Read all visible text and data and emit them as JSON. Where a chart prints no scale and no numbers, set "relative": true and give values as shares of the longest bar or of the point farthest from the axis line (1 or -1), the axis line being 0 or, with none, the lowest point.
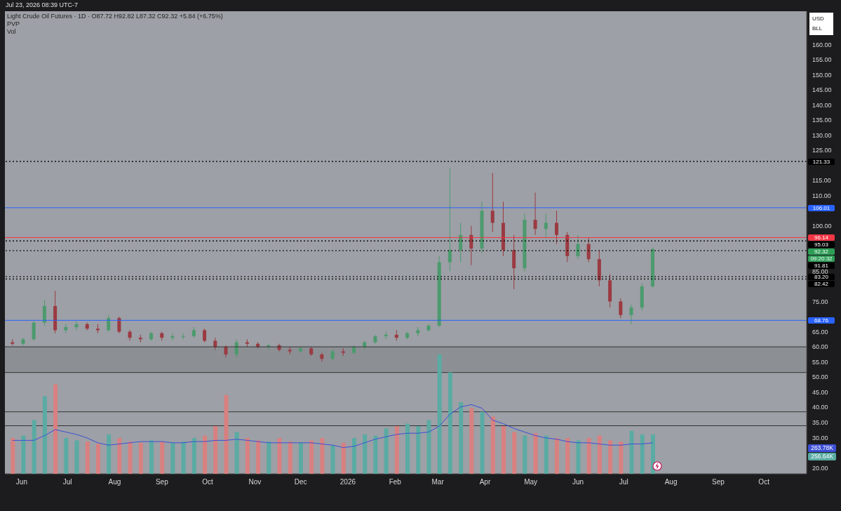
{
  "chart_data": [
    {
      "type": "candlestick",
      "title": "Light Crude Oil Futures · 1D · O87.72 H92.82 L87.32 C92.32 +5.84 (+6.75%)",
      "subtitle": "Jul 23, 2026 08:39 UTC-7",
      "annotations": [
        "PVP",
        "Vol",
        "92.32",
        "09:20:32",
        "USD",
        "BLL"
      ],
      "x": [
        "2025-05-26",
        "2025-06-02",
        "2025-06-09",
        "2025-06-16",
        "2025-06-23",
        "2025-06-30",
        "2025-07-07",
        "2025-07-14",
        "2025-07-21",
        "2025-07-28",
        "2025-08-04",
        "2025-08-11",
        "2025-08-18",
        "2025-08-25",
        "2025-09-01",
        "2025-09-08",
        "2025-09-15",
        "2025-09-22",
        "2025-09-29",
        "2025-10-06",
        "2025-10-13",
        "2025-10-20",
        "2025-10-27",
        "2025-11-03",
        "2025-11-10",
        "2025-11-17",
        "2025-11-24",
        "2025-12-01",
        "2025-12-08",
        "2025-12-15",
        "2025-12-22",
        "2025-12-29",
        "2026-01-05",
        "2026-01-12",
        "2026-01-19",
        "2026-01-26",
        "2026-02-02",
        "2026-02-09",
        "2026-02-16",
        "2026-02-23",
        "2026-03-02",
        "2026-03-09",
        "2026-03-16",
        "2026-03-23",
        "2026-03-30",
        "2026-04-06",
        "2026-04-13",
        "2026-04-20",
        "2026-04-27",
        "2026-05-04",
        "2026-05-11",
        "2026-05-18",
        "2026-05-25",
        "2026-06-01",
        "2026-06-08",
        "2026-06-15",
        "2026-06-22",
        "2026-06-29",
        "2026-07-06",
        "2026-07-13",
        "2026-07-20"
      ],
      "ohlc": [
        [
          61.5,
          62.5,
          60.5,
          61
        ],
        [
          61,
          63,
          60.5,
          62.5
        ],
        [
          62.5,
          68.5,
          62,
          68
        ],
        [
          68,
          75.5,
          67,
          73.5
        ],
        [
          73.5,
          78.5,
          64.5,
          65.5
        ],
        [
          65.5,
          67.5,
          64.5,
          66.5
        ],
        [
          66.5,
          68.5,
          65.5,
          67.5
        ],
        [
          67.5,
          68,
          65.5,
          66
        ],
        [
          66,
          67.5,
          64.5,
          65.5
        ],
        [
          65.5,
          70.5,
          65,
          69.5
        ],
        [
          69.5,
          70,
          64.5,
          65
        ],
        [
          65,
          65.5,
          62,
          63
        ],
        [
          63,
          64,
          61.5,
          62.5
        ],
        [
          62.5,
          65,
          62,
          64.5
        ],
        [
          64.5,
          65,
          62,
          63
        ],
        [
          63,
          64.5,
          62,
          63.5
        ],
        [
          63.5,
          64.5,
          62.5,
          63.5
        ],
        [
          63.5,
          66.5,
          63,
          65.5
        ],
        [
          65.5,
          66,
          61.5,
          62
        ],
        [
          62,
          63,
          59,
          60
        ],
        [
          60,
          60.5,
          56.5,
          57.5
        ],
        [
          57.5,
          62.5,
          56.5,
          61.5
        ],
        [
          61.5,
          62.5,
          60,
          61
        ],
        [
          61,
          61.5,
          59.5,
          60
        ],
        [
          60,
          61,
          59,
          60.5
        ],
        [
          60.5,
          61,
          58.5,
          59
        ],
        [
          59,
          60,
          57.5,
          58.5
        ],
        [
          58.5,
          60,
          58,
          59.5
        ],
        [
          59.5,
          60,
          57,
          57.5
        ],
        [
          57.5,
          58,
          55,
          56
        ],
        [
          56,
          59,
          55.5,
          58.5
        ],
        [
          58.5,
          59.5,
          57,
          58
        ],
        [
          58,
          60.5,
          57.5,
          60
        ],
        [
          60,
          62,
          59,
          61.5
        ],
        [
          61.5,
          64,
          61,
          63.5
        ],
        [
          63.5,
          65,
          62.5,
          64
        ],
        [
          64,
          65.5,
          62,
          63
        ],
        [
          63,
          65,
          62.5,
          64.5
        ],
        [
          64.5,
          66.5,
          63.5,
          65.5
        ],
        [
          65.5,
          67.5,
          65,
          67
        ],
        [
          67,
          90,
          66.5,
          88
        ],
        [
          88,
          119,
          85,
          92
        ],
        [
          92,
          101,
          88,
          97
        ],
        [
          97,
          100,
          87,
          92.5
        ],
        [
          92.5,
          108,
          91,
          105
        ],
        [
          105,
          117.5,
          98,
          101
        ],
        [
          101,
          108,
          90,
          92
        ],
        [
          92,
          97,
          79,
          86
        ],
        [
          86,
          104,
          85,
          102
        ],
        [
          102,
          111,
          97,
          99
        ],
        [
          99,
          104,
          96,
          101
        ],
        [
          101,
          105,
          94,
          97
        ],
        [
          97,
          98,
          88,
          90
        ],
        [
          90,
          97,
          89,
          94
        ],
        [
          94,
          96,
          88,
          89
        ],
        [
          89,
          92,
          80,
          82
        ],
        [
          82,
          84,
          73,
          75
        ],
        [
          75,
          76,
          69.5,
          70.5
        ],
        [
          70.5,
          74,
          67.5,
          73
        ],
        [
          73,
          81,
          72,
          80
        ],
        [
          80,
          92.82,
          79.5,
          92.32
        ]
      ],
      "colors": [
        "#9b3a42",
        "#4c9a6e",
        "#4c9a6e",
        "#4c9a6e",
        "#9b3a42",
        "#4c9a6e",
        "#4c9a6e",
        "#9b3a42",
        "#9b3a42",
        "#4c9a6e",
        "#9b3a42",
        "#9b3a42",
        "#9b3a42",
        "#4c9a6e",
        "#9b3a42",
        "#4c9a6e",
        "#4c9a6e",
        "#4c9a6e",
        "#9b3a42",
        "#9b3a42",
        "#9b3a42",
        "#4c9a6e",
        "#9b3a42",
        "#9b3a42",
        "#4c9a6e",
        "#9b3a42",
        "#9b3a42",
        "#4c9a6e",
        "#9b3a42",
        "#9b3a42",
        "#4c9a6e",
        "#9b3a42",
        "#4c9a6e",
        "#4c9a6e",
        "#4c9a6e",
        "#4c9a6e",
        "#9b3a42",
        "#4c9a6e",
        "#4c9a6e",
        "#4c9a6e",
        "#4c9a6e",
        "#4c9a6e",
        "#4c9a6e",
        "#9b3a42",
        "#4c9a6e",
        "#9b3a42",
        "#9b3a42",
        "#9b3a42",
        "#4c9a6e",
        "#9b3a42",
        "#4c9a6e",
        "#9b3a42",
        "#9b3a42",
        "#4c9a6e",
        "#9b3a42",
        "#9b3a42",
        "#9b3a42",
        "#9b3a42",
        "#4c9a6e",
        "#4c9a6e",
        "#4c9a6e"
      ],
      "xlim": [
        "2025-05-21",
        "2026-10-29"
      ],
      "xticks": [
        {
          "value": "2025-06-01",
          "label": "Jun"
        },
        {
          "value": "2025-07-01",
          "label": "Jul"
        },
        {
          "value": "2025-08-01",
          "label": "Aug"
        },
        {
          "value": "2025-09-01",
          "label": "Sep"
        },
        {
          "value": "2025-10-01",
          "label": "Oct"
        },
        {
          "value": "2025-11-01",
          "label": "Nov"
        },
        {
          "value": "2025-12-01",
          "label": "Dec"
        },
        {
          "value": "2026-01-01",
          "label": "2026"
        },
        {
          "value": "2026-02-01",
          "label": "Feb"
        },
        {
          "value": "2026-03-01",
          "label": "Mar"
        },
        {
          "value": "2026-04-01",
          "label": "Apr"
        },
        {
          "value": "2026-05-01",
          "label": "May"
        },
        {
          "value": "2026-06-01",
          "label": "Jun"
        },
        {
          "value": "2026-07-01",
          "label": "Jul"
        },
        {
          "value": "2026-08-01",
          "label": "Aug"
        },
        {
          "value": "2026-09-01",
          "label": "Sep"
        },
        {
          "value": "2026-10-01",
          "label": "Oct"
        }
      ],
      "ylim": [
        18,
        171
      ],
      "yticks": [
        {
          "value": 20,
          "label": "20.00"
        },
        {
          "value": 30,
          "label": "30.00"
        },
        {
          "value": 35,
          "label": "35.00"
        },
        {
          "value": 40,
          "label": "40.00"
        },
        {
          "value": 45,
          "label": "45.00"
        },
        {
          "value": 50,
          "label": "50.00"
        },
        {
          "value": 55,
          "label": "55.00"
        },
        {
          "value": 60,
          "label": "60.00"
        },
        {
          "value": 65,
          "label": "65.00"
        },
        {
          "value": 75,
          "label": "75.00"
        },
        {
          "value": 85,
          "label": "85.00"
        },
        {
          "value": 100,
          "label": "100.00"
        },
        {
          "value": 110,
          "label": "110.00"
        },
        {
          "value": 115,
          "label": "115.00"
        },
        {
          "value": 125,
          "label": "125.00"
        },
        {
          "value": 130,
          "label": "130.00"
        },
        {
          "value": 135,
          "label": "135.00"
        },
        {
          "value": 140,
          "label": "140.00"
        },
        {
          "value": 145,
          "label": "145.00"
        },
        {
          "value": 150,
          "label": "150.00"
        },
        {
          "value": 155,
          "label": "155.00"
        },
        {
          "value": 160,
          "label": "160.00"
        }
      ],
      "grid": false,
      "legend": false,
      "ref_lines": [
        {
          "axis": "y",
          "value": 121.33,
          "label": "121.33",
          "color": "#111111",
          "line_style": "dotted"
        },
        {
          "axis": "y",
          "value": 106.01,
          "label": "106.01",
          "color": "#2962ff",
          "line_style": "solid"
        },
        {
          "axis": "y",
          "value": 96.14,
          "label": "96.14",
          "color": "#f23645",
          "line_style": "solid"
        },
        {
          "axis": "y",
          "value": 95.03,
          "label": "95.03",
          "color": "#111111",
          "line_style": "dotted"
        },
        {
          "axis": "y",
          "value": 91.81,
          "label": "91.81",
          "color": "#111111",
          "line_style": "dotted"
        },
        {
          "axis": "y",
          "value": 83.2,
          "label": "83.20",
          "color": "#111111",
          "line_style": "dotted"
        },
        {
          "axis": "y",
          "value": 82.42,
          "label": "82.42",
          "color": "#111111",
          "line_style": "dotted"
        },
        {
          "axis": "y",
          "value": 68.76,
          "label": "68.76",
          "color": "#2962ff",
          "line_style": "solid"
        },
        {
          "axis": "y",
          "value": 60,
          "color": "#333333",
          "line_style": "solid"
        },
        {
          "axis": "y",
          "value": 51.5,
          "color": "#333333",
          "line_style": "solid"
        },
        {
          "axis": "y",
          "value": 38.5,
          "color": "#333333",
          "line_style": "solid"
        },
        {
          "axis": "y",
          "value": 33.9,
          "color": "#333333",
          "line_style": "solid"
        }
      ],
      "bands": [
        {
          "axis": "y",
          "from": 51.5,
          "to": 60,
          "color": "#8c8f94"
        }
      ]
    },
    {
      "type": "bar",
      "relative": true,
      "tick_labels": false,
      "legend": false,
      "grid": false,
      "annotations": [
        "263.78K",
        "256.64K"
      ],
      "x": [
        "2025-05-26",
        "2025-06-02",
        "2025-06-09",
        "2025-06-16",
        "2025-06-23",
        "2025-06-30",
        "2025-07-07",
        "2025-07-14",
        "2025-07-21",
        "2025-07-28",
        "2025-08-04",
        "2025-08-11",
        "2025-08-18",
        "2025-08-25",
        "2025-09-01",
        "2025-09-08",
        "2025-09-15",
        "2025-09-22",
        "2025-09-29",
        "2025-10-06",
        "2025-10-13",
        "2025-10-20",
        "2025-10-27",
        "2025-11-03",
        "2025-11-10",
        "2025-11-17",
        "2025-11-24",
        "2025-12-01",
        "2025-12-08",
        "2025-12-15",
        "2025-12-22",
        "2025-12-29",
        "2026-01-05",
        "2026-01-12",
        "2026-01-19",
        "2026-01-26",
        "2026-02-02",
        "2026-02-09",
        "2026-02-16",
        "2026-02-23",
        "2026-03-02",
        "2026-03-09",
        "2026-03-16",
        "2026-03-23",
        "2026-03-30",
        "2026-04-06",
        "2026-04-13",
        "2026-04-20",
        "2026-04-27",
        "2026-05-04",
        "2026-05-11",
        "2026-05-18",
        "2026-05-25",
        "2026-06-01",
        "2026-06-08",
        "2026-06-15",
        "2026-06-22",
        "2026-06-29",
        "2026-07-06",
        "2026-07-13",
        "2026-07-20"
      ],
      "xlim": [
        "2025-05-21",
        "2026-10-29"
      ],
      "series": [
        {
          "type": "line",
          "color": "#3d4fd6",
          "values": [
            0.28,
            0.28,
            0.28,
            0.32,
            0.37,
            0.35,
            0.33,
            0.3,
            0.26,
            0.24,
            0.25,
            0.26,
            0.27,
            0.27,
            0.27,
            0.26,
            0.26,
            0.27,
            0.27,
            0.28,
            0.28,
            0.29,
            0.28,
            0.27,
            0.26,
            0.26,
            0.26,
            0.26,
            0.26,
            0.25,
            0.24,
            0.22,
            0.23,
            0.26,
            0.29,
            0.31,
            0.33,
            0.34,
            0.34,
            0.35,
            0.4,
            0.5,
            0.56,
            0.58,
            0.55,
            0.45,
            0.42,
            0.38,
            0.35,
            0.32,
            0.3,
            0.29,
            0.27,
            0.26,
            0.26,
            0.25,
            0.24,
            0.24,
            0.25,
            0.25,
            0.26
          ]
        },
        {
          "type": "bar",
          "values": [
            0.3,
            0.32,
            0.45,
            0.65,
            0.75,
            0.3,
            0.28,
            0.27,
            0.25,
            0.33,
            0.3,
            0.27,
            0.26,
            0.28,
            0.27,
            0.26,
            0.27,
            0.3,
            0.32,
            0.4,
            0.66,
            0.35,
            0.3,
            0.28,
            0.27,
            0.3,
            0.27,
            0.26,
            0.28,
            0.3,
            0.24,
            0.26,
            0.3,
            0.33,
            0.32,
            0.38,
            0.4,
            0.42,
            0.4,
            0.45,
            1,
            0.85,
            0.6,
            0.55,
            0.52,
            0.48,
            0.4,
            0.35,
            0.32,
            0.34,
            0.32,
            0.3,
            0.3,
            0.28,
            0.3,
            0.32,
            0.28,
            0.27,
            0.36,
            0.33,
            0.33
          ],
          "colors": [
            "#d98080",
            "#5aaba3",
            "#5aaba3",
            "#5aaba3",
            "#d98080",
            "#5aaba3",
            "#5aaba3",
            "#d98080",
            "#d98080",
            "#5aaba3",
            "#d98080",
            "#d98080",
            "#d98080",
            "#5aaba3",
            "#d98080",
            "#5aaba3",
            "#5aaba3",
            "#5aaba3",
            "#d98080",
            "#d98080",
            "#d98080",
            "#5aaba3",
            "#d98080",
            "#d98080",
            "#5aaba3",
            "#d98080",
            "#d98080",
            "#5aaba3",
            "#d98080",
            "#d98080",
            "#5aaba3",
            "#d98080",
            "#5aaba3",
            "#5aaba3",
            "#5aaba3",
            "#5aaba3",
            "#d98080",
            "#5aaba3",
            "#5aaba3",
            "#5aaba3",
            "#5aaba3",
            "#5aaba3",
            "#5aaba3",
            "#d98080",
            "#5aaba3",
            "#d98080",
            "#d98080",
            "#d98080",
            "#5aaba3",
            "#d98080",
            "#5aaba3",
            "#d98080",
            "#d98080",
            "#5aaba3",
            "#d98080",
            "#d98080",
            "#d98080",
            "#d98080",
            "#5aaba3",
            "#5aaba3",
            "#5aaba3"
          ]
        }
      ]
    }
  ]
}
